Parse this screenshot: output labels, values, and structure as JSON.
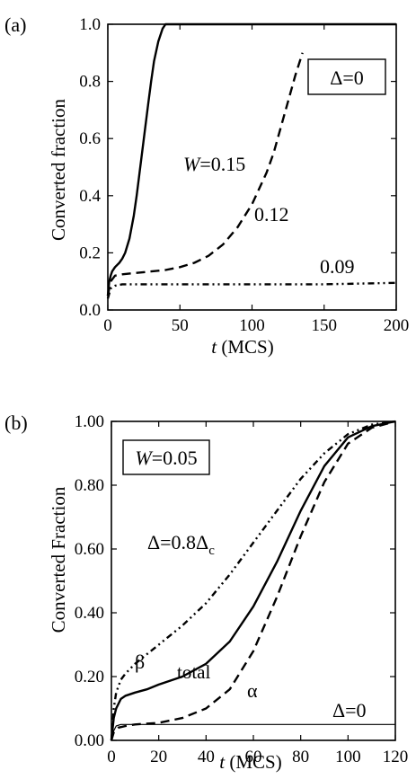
{
  "chart_data": [
    {
      "panel": "(a)",
      "type": "line",
      "xlabel_italic": "t",
      "xlabel_rest": " (MCS)",
      "ylabel": "Converted fraction",
      "xlim": [
        0,
        200
      ],
      "ylim": [
        0,
        1.0
      ],
      "xticks": [
        0,
        50,
        100,
        150,
        200
      ],
      "xtick_labels": [
        "0",
        "50",
        "100",
        "150",
        "200"
      ],
      "yticks": [
        0,
        0.2,
        0.4,
        0.6,
        0.8,
        1.0
      ],
      "ytick_labels": [
        "0.0",
        "0.2",
        "0.4",
        "0.6",
        "0.8",
        "1.0"
      ],
      "legend_box": {
        "text": "Δ=0",
        "placement": "top-right"
      },
      "series": [
        {
          "label_italic": "W",
          "label_rest": "=0.15",
          "style": "solid",
          "points": [
            [
              0,
              0.05
            ],
            [
              1,
              0.1
            ],
            [
              2,
              0.12
            ],
            [
              3,
              0.135
            ],
            [
              5,
              0.15
            ],
            [
              8,
              0.165
            ],
            [
              10,
              0.18
            ],
            [
              12,
              0.2
            ],
            [
              15,
              0.25
            ],
            [
              18,
              0.33
            ],
            [
              20,
              0.4
            ],
            [
              22,
              0.48
            ],
            [
              25,
              0.6
            ],
            [
              28,
              0.72
            ],
            [
              30,
              0.8
            ],
            [
              32,
              0.87
            ],
            [
              35,
              0.94
            ],
            [
              38,
              0.985
            ],
            [
              40,
              1.0
            ],
            [
              45,
              1.0
            ],
            [
              200,
              1.0
            ]
          ]
        },
        {
          "label": "0.12",
          "style": "dashed",
          "points": [
            [
              0,
              0.05
            ],
            [
              2,
              0.1
            ],
            [
              5,
              0.12
            ],
            [
              10,
              0.125
            ],
            [
              20,
              0.13
            ],
            [
              30,
              0.135
            ],
            [
              40,
              0.14
            ],
            [
              50,
              0.15
            ],
            [
              60,
              0.165
            ],
            [
              70,
              0.19
            ],
            [
              80,
              0.23
            ],
            [
              90,
              0.29
            ],
            [
              100,
              0.37
            ],
            [
              110,
              0.48
            ],
            [
              115,
              0.55
            ],
            [
              120,
              0.64
            ],
            [
              125,
              0.73
            ],
            [
              130,
              0.82
            ],
            [
              135,
              0.9
            ]
          ]
        },
        {
          "label": "0.09",
          "style": "dash-dot-dot",
          "points": [
            [
              0,
              0.04
            ],
            [
              2,
              0.075
            ],
            [
              5,
              0.085
            ],
            [
              10,
              0.09
            ],
            [
              50,
              0.09
            ],
            [
              100,
              0.09
            ],
            [
              150,
              0.09
            ],
            [
              200,
              0.095
            ]
          ]
        }
      ]
    },
    {
      "panel": "(b)",
      "type": "line",
      "xlabel_italic": "t",
      "xlabel_rest": " (MCS)",
      "ylabel": "Converted Fraction",
      "xlim": [
        0,
        120
      ],
      "ylim": [
        0,
        1.0
      ],
      "xticks": [
        0,
        20,
        40,
        60,
        80,
        100,
        120
      ],
      "xtick_labels": [
        "0",
        "20",
        "40",
        "60",
        "80",
        "100",
        "120"
      ],
      "yticks": [
        0,
        0.2,
        0.4,
        0.6,
        0.8,
        1.0
      ],
      "ytick_labels": [
        "0.00",
        "0.20",
        "0.40",
        "0.60",
        "0.80",
        "1.00"
      ],
      "legend_box": {
        "text_italic": "W",
        "text_rest": "=0.05",
        "placement": "top-left"
      },
      "annotations": {
        "delta_main": "Δ=0.8Δ",
        "delta_sub": "c",
        "delta_zero": "Δ=0"
      },
      "series": [
        {
          "label": "β",
          "style": "dash-dot-dot",
          "points": [
            [
              0,
              0.0
            ],
            [
              1,
              0.1
            ],
            [
              2,
              0.15
            ],
            [
              4,
              0.19
            ],
            [
              6,
              0.21
            ],
            [
              10,
              0.24
            ],
            [
              15,
              0.27
            ],
            [
              20,
              0.3
            ],
            [
              30,
              0.36
            ],
            [
              40,
              0.43
            ],
            [
              50,
              0.52
            ],
            [
              60,
              0.62
            ],
            [
              70,
              0.72
            ],
            [
              80,
              0.82
            ],
            [
              90,
              0.9
            ],
            [
              100,
              0.96
            ],
            [
              110,
              0.99
            ],
            [
              120,
              1.0
            ]
          ]
        },
        {
          "label": "total",
          "style": "solid",
          "points": [
            [
              0,
              0.0
            ],
            [
              1,
              0.07
            ],
            [
              2,
              0.1
            ],
            [
              4,
              0.13
            ],
            [
              6,
              0.14
            ],
            [
              10,
              0.15
            ],
            [
              15,
              0.16
            ],
            [
              20,
              0.175
            ],
            [
              30,
              0.2
            ],
            [
              40,
              0.24
            ],
            [
              50,
              0.31
            ],
            [
              60,
              0.42
            ],
            [
              70,
              0.56
            ],
            [
              80,
              0.72
            ],
            [
              90,
              0.86
            ],
            [
              100,
              0.95
            ],
            [
              110,
              0.985
            ],
            [
              120,
              1.0
            ]
          ]
        },
        {
          "label": "α",
          "style": "dashed",
          "points": [
            [
              0,
              0.0
            ],
            [
              1,
              0.025
            ],
            [
              3,
              0.04
            ],
            [
              6,
              0.045
            ],
            [
              10,
              0.05
            ],
            [
              20,
              0.055
            ],
            [
              30,
              0.07
            ],
            [
              40,
              0.1
            ],
            [
              50,
              0.16
            ],
            [
              60,
              0.28
            ],
            [
              70,
              0.45
            ],
            [
              80,
              0.64
            ],
            [
              90,
              0.81
            ],
            [
              100,
              0.93
            ],
            [
              110,
              0.98
            ],
            [
              120,
              1.0
            ]
          ]
        },
        {
          "label": "Δ=0",
          "style": "thin-solid",
          "show_label": false,
          "points": [
            [
              0,
              0.0
            ],
            [
              1,
              0.03
            ],
            [
              2,
              0.045
            ],
            [
              4,
              0.05
            ],
            [
              10,
              0.05
            ],
            [
              60,
              0.05
            ],
            [
              120,
              0.05
            ]
          ]
        }
      ]
    }
  ]
}
